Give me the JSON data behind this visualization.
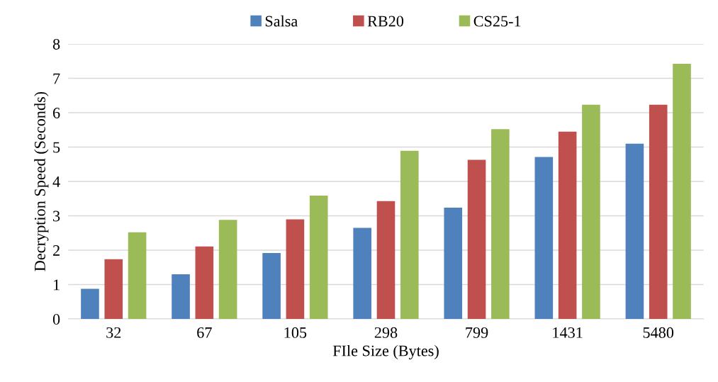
{
  "chart_data": {
    "type": "bar",
    "xlabel": "FIle Size (Bytes)",
    "ylabel": "Decryption Speed (Seconds)",
    "categories": [
      "32",
      "67",
      "105",
      "298",
      "799",
      "1431",
      "5480"
    ],
    "series": [
      {
        "name": "Salsa",
        "color": "#4f81bd",
        "values": [
          0.88,
          1.3,
          1.92,
          2.65,
          3.24,
          4.71,
          5.1
        ]
      },
      {
        "name": "RB20",
        "color": "#c0504d",
        "values": [
          1.74,
          2.11,
          2.9,
          3.43,
          4.63,
          5.45,
          6.23
        ]
      },
      {
        "name": "CS25-1",
        "color": "#9bbb59",
        "values": [
          2.52,
          2.88,
          3.59,
          4.89,
          5.52,
          6.23,
          7.42
        ]
      }
    ],
    "ylim": [
      0,
      8
    ],
    "yticks": [
      0,
      1,
      2,
      3,
      4,
      5,
      6,
      7,
      8
    ],
    "grid": "y",
    "legend": "top"
  }
}
